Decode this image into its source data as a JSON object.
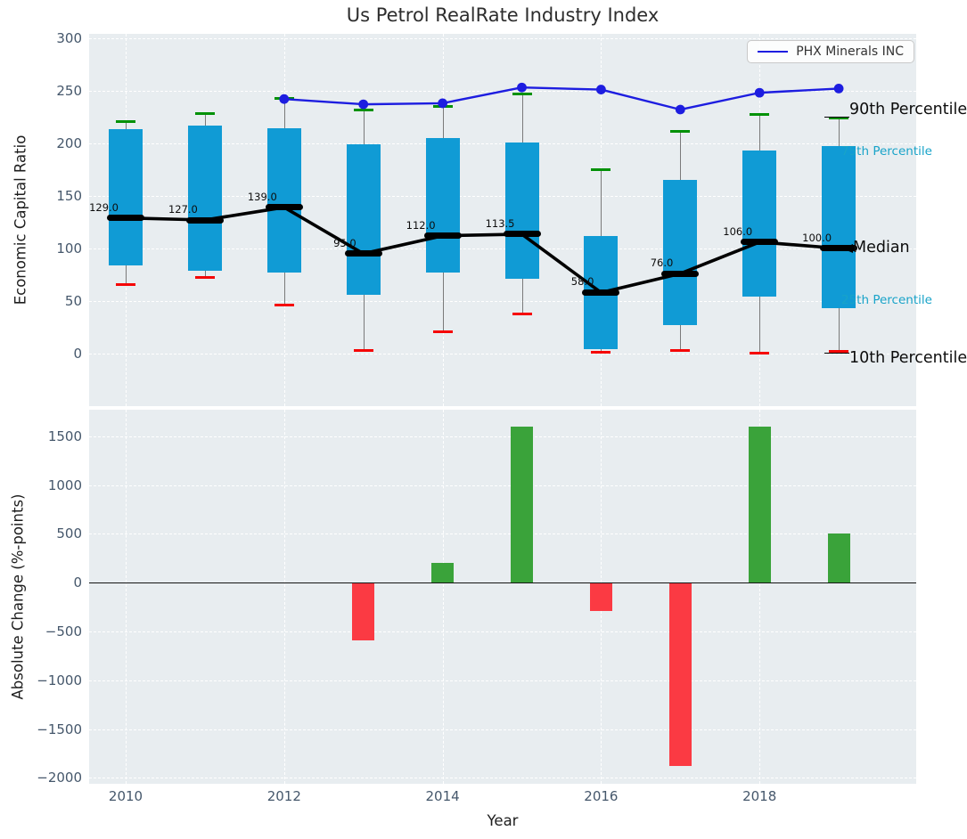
{
  "title": "Us Petrol RealRate Industry Index",
  "legend": {
    "label": "PHX Minerals INC"
  },
  "colors": {
    "plot_bg": "#e8edf0",
    "grid": "#ffffff",
    "box_fill": "#109bd5",
    "whisker": "#7a7a7a",
    "cap_high": "#009106",
    "cap_low": "#f50505",
    "median_line": "#000000",
    "company_line": "#1d1de0",
    "bar_up": "#3aa33a",
    "bar_down": "#fb3a43",
    "tick_text": "#45576b",
    "annotation_cyan": "#18a3c9",
    "title_text": "#2d2d2d"
  },
  "chart_data": [
    {
      "type": "box",
      "title": "Us Petrol RealRate Industry Index",
      "ylabel": "Economic Capital Ratio",
      "ylim": [
        -50,
        304
      ],
      "yticks": [
        0,
        50,
        100,
        150,
        200,
        250,
        300
      ],
      "ytick_labels": [
        "0",
        "50",
        "100",
        "150",
        "200",
        "250",
        "300"
      ],
      "years": [
        2010,
        2011,
        2012,
        2013,
        2014,
        2015,
        2016,
        2017,
        2018,
        2019
      ],
      "p90": [
        221,
        228,
        243,
        232,
        235,
        247,
        175,
        211,
        227,
        224
      ],
      "p75": [
        213,
        217,
        214,
        199,
        205,
        201,
        112,
        165,
        193,
        197
      ],
      "median": [
        129,
        127,
        139,
        95,
        112,
        113.5,
        58,
        76,
        106,
        100
      ],
      "median_labels": [
        "129.0",
        "127.0",
        "139.0",
        "95.0",
        "112.0",
        "113.5",
        "58.0",
        "76.0",
        "106.0",
        "100.0"
      ],
      "p25": [
        84,
        79,
        77,
        56,
        77,
        71,
        4,
        27,
        54,
        43
      ],
      "p10": [
        66,
        72,
        46,
        3,
        21,
        38,
        1,
        3,
        0,
        2
      ],
      "company_line": {
        "name": "PHX Minerals INC",
        "years": [
          2012,
          2013,
          2014,
          2015,
          2016,
          2017,
          2018,
          2019
        ],
        "values": [
          242,
          237,
          238,
          253,
          251,
          232,
          248,
          252
        ]
      },
      "annotations": [
        {
          "text": "90th Percentile",
          "value": 224,
          "style": "black-large",
          "leader": true
        },
        {
          "text": "75th Percentile",
          "value": 192,
          "style": "cyan-small"
        },
        {
          "text": "Median",
          "value": 100,
          "style": "black-large",
          "arrow": true
        },
        {
          "text": "25th Percentile",
          "value": 50,
          "style": "cyan-small"
        },
        {
          "text": "10th Percentile",
          "value": 0,
          "style": "black-large",
          "leader": true
        }
      ],
      "grid_years": [
        2010,
        2012,
        2014,
        2016,
        2018
      ],
      "legend_position": "upper right",
      "grid": true
    },
    {
      "type": "bar",
      "ylabel": "Absolute Change (%-points)",
      "xlabel": "Year",
      "ylim": [
        -2060,
        1772
      ],
      "yticks": [
        -2000,
        -1500,
        -1000,
        -500,
        0,
        500,
        1000,
        1500
      ],
      "ytick_labels": [
        "−2000",
        "−1500",
        "−1000",
        "−500",
        "0",
        "500",
        "1000",
        "1500"
      ],
      "categories": [
        2010,
        2011,
        2012,
        2013,
        2014,
        2015,
        2016,
        2017,
        2018,
        2019
      ],
      "values": [
        0,
        0,
        0,
        -590,
        200,
        1600,
        -290,
        -1880,
        1600,
        500
      ],
      "xticks_shown": [
        2010,
        2012,
        2014,
        2016,
        2018
      ],
      "xtick_labels": [
        "2010",
        "2012",
        "2014",
        "2016",
        "2018"
      ],
      "grid": true
    }
  ]
}
